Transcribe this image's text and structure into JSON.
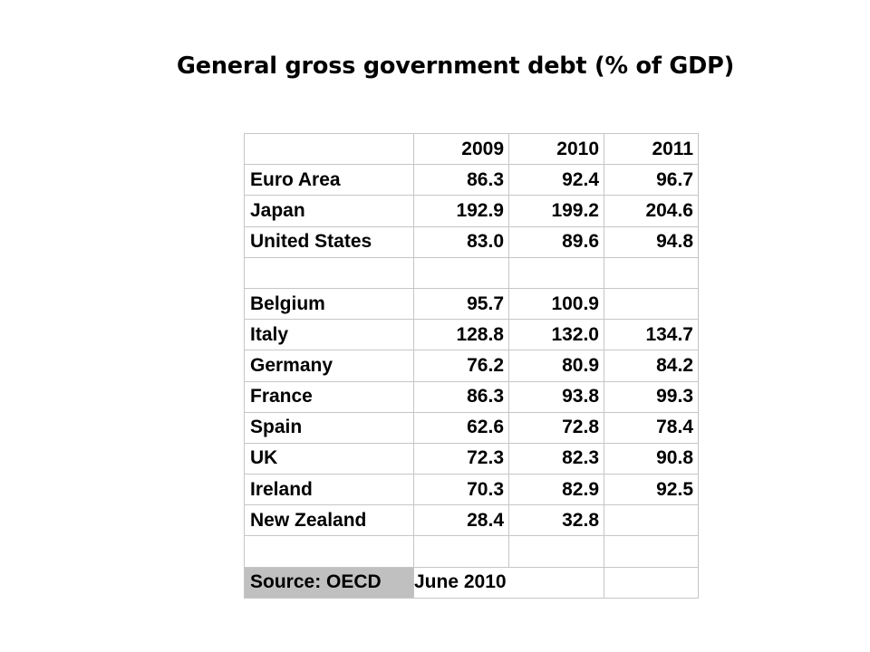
{
  "title": "General gross government debt (% of GDP)",
  "table": {
    "headers": [
      "",
      "2009",
      "2010",
      "2011"
    ],
    "rows": [
      {
        "country": "Euro Area",
        "v2009": "86.3",
        "v2010": "92.4",
        "v2011": "96.7"
      },
      {
        "country": "Japan",
        "v2009": "192.9",
        "v2010": "199.2",
        "v2011": "204.6"
      },
      {
        "country": "United States",
        "v2009": "83.0",
        "v2010": "89.6",
        "v2011": "94.8"
      },
      {
        "country": "",
        "v2009": "",
        "v2010": "",
        "v2011": ""
      },
      {
        "country": "Belgium",
        "v2009": "95.7",
        "v2010": "100.9",
        "v2011": ""
      },
      {
        "country": "Italy",
        "v2009": "128.8",
        "v2010": "132.0",
        "v2011": "134.7"
      },
      {
        "country": "Germany",
        "v2009": "76.2",
        "v2010": "80.9",
        "v2011": "84.2"
      },
      {
        "country": "France",
        "v2009": "86.3",
        "v2010": "93.8",
        "v2011": "99.3"
      },
      {
        "country": "Spain",
        "v2009": "62.6",
        "v2010": "72.8",
        "v2011": "78.4"
      },
      {
        "country": "UK",
        "v2009": "72.3",
        "v2010": "82.3",
        "v2011": "90.8"
      },
      {
        "country": "Ireland",
        "v2009": "70.3",
        "v2010": "82.9",
        "v2011": "92.5"
      },
      {
        "country": "New Zealand",
        "v2009": "28.4",
        "v2010": "32.8",
        "v2011": ""
      },
      {
        "country": "",
        "v2009": "",
        "v2010": "",
        "v2011": ""
      }
    ],
    "source_label": "Source: OECD",
    "source_date": "June 2010",
    "colors": {
      "grid": "#c6c6c6",
      "source_bg": "#c0c0c0"
    }
  }
}
